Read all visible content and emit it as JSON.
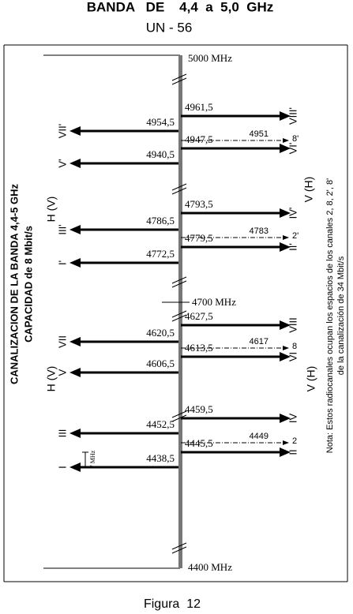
{
  "header": {
    "title": "BANDA   DE    4,4  a  5,0  GHz",
    "subtitle": "UN - 56"
  },
  "side_title": [
    "CANALIZACION DE LA BANDA 4,4-5 GHz",
    "CAPACIDAD de 8 Mbit/s"
  ],
  "scale": {
    "top": "5000  MHz",
    "middle": "4700  MHz",
    "bottom": "4400  MHz"
  },
  "polarization": {
    "left_upper": "H (V)",
    "right_upper": "V (H)",
    "left_lower": "H (V)",
    "right_lower": "V (H)"
  },
  "channels": [
    {
      "freq": "4961,5",
      "label": "VIII'"
    },
    {
      "freq": "4954,5",
      "label": "VII'"
    },
    {
      "freq": "4951",
      "label": "8'"
    },
    {
      "freq": "4947,5",
      "label": "VI'"
    },
    {
      "freq": "4940,5",
      "label": "V'"
    },
    {
      "freq": "4793,5",
      "label": "IV'"
    },
    {
      "freq": "4786,5",
      "label": "III'"
    },
    {
      "freq": "4783",
      "label": "2'"
    },
    {
      "freq": "4779,5",
      "label": "II'"
    },
    {
      "freq": "4772,5",
      "label": "I'"
    },
    {
      "freq": "4627,5",
      "label": "VIII"
    },
    {
      "freq": "4620,5",
      "label": "VII"
    },
    {
      "freq": "4617",
      "label": "8"
    },
    {
      "freq": "4613,5",
      "label": "VI"
    },
    {
      "freq": "4606,5",
      "label": "V"
    },
    {
      "freq": "4459,5",
      "label": "IV"
    },
    {
      "freq": "4452,5",
      "label": "III"
    },
    {
      "freq": "4449",
      "label": "2"
    },
    {
      "freq": "4445,5",
      "label": "II"
    },
    {
      "freq": "4438,5",
      "label": "I"
    }
  ],
  "spacing_label": "7 MHz",
  "note": [
    "Nota: Estos radiocanales ocupan los espacios de los canales 2, 8, 2', 8'",
    "de la canalización de 34 Mbit/s"
  ],
  "caption": "Figura  12"
}
